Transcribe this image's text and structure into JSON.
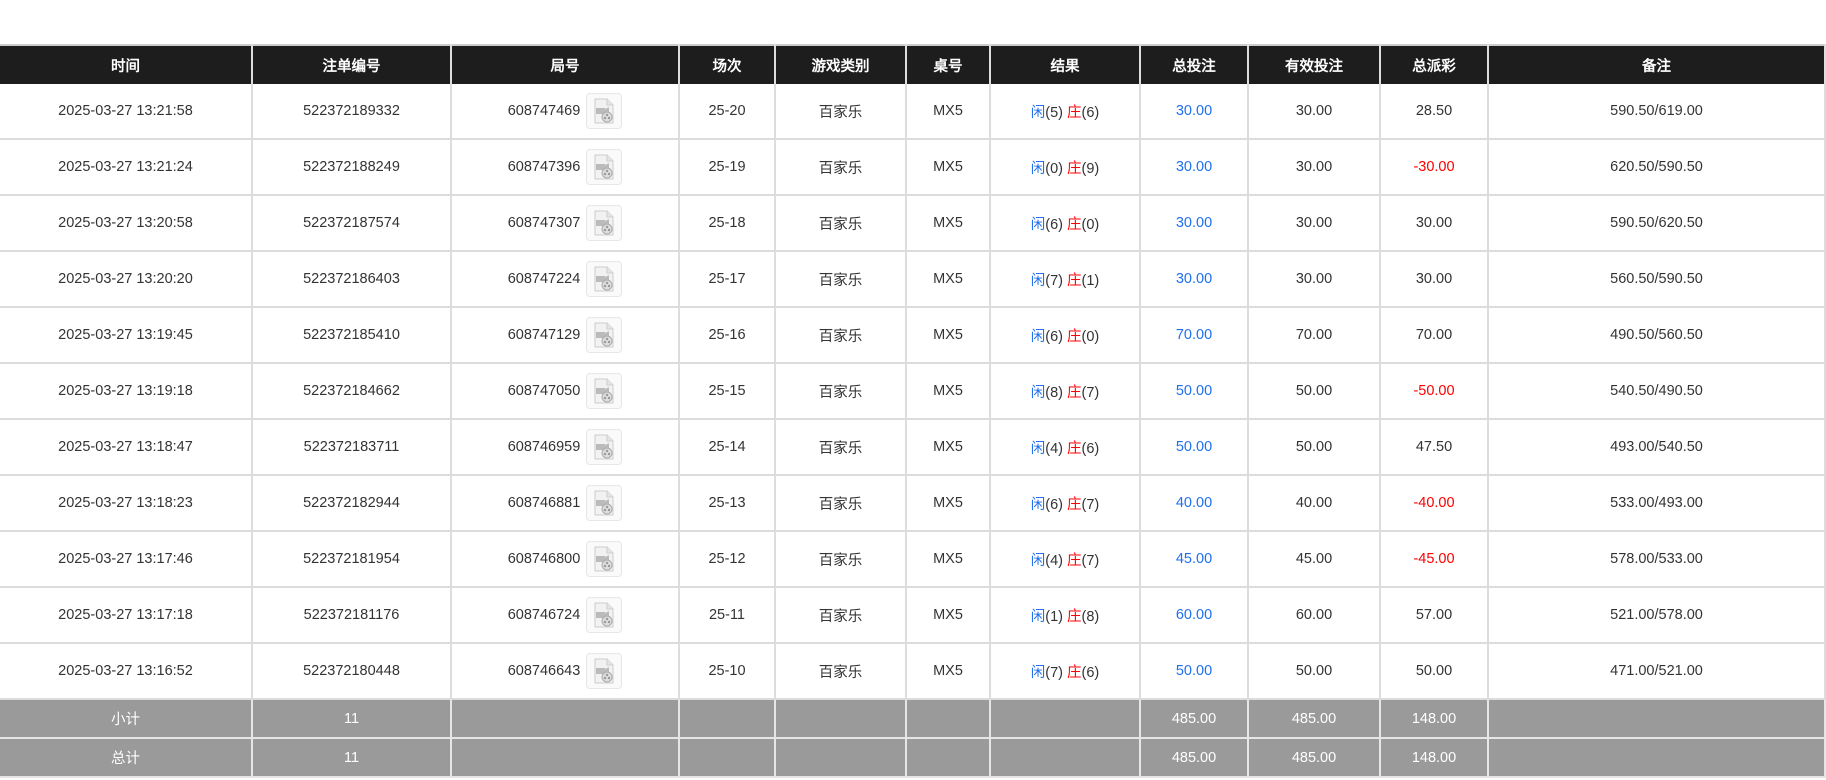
{
  "columns": [
    "时间",
    "注单编号",
    "局号",
    "场次",
    "游戏类别",
    "桌号",
    "结果",
    "总投注",
    "有效投注",
    "总派彩",
    "备注"
  ],
  "colors": {
    "player": "#1e6ff0",
    "banker": "#ff0000",
    "negative": "#ff0000",
    "header_bg": "#1d1d1d",
    "summary_bg": "#9a9a9a"
  },
  "rows": [
    {
      "time": "2025-03-27 13:21:58",
      "bet_id": "522372189332",
      "round": "608747469",
      "shoe": "25-20",
      "game": "百家乐",
      "table": "MX5",
      "player_label": "闲",
      "player": "(5)",
      "banker_label": "庄",
      "banker": "(6)",
      "total_bet": "30.00",
      "valid_bet": "30.00",
      "payout": "28.50",
      "note": "590.50/619.00"
    },
    {
      "time": "2025-03-27 13:21:24",
      "bet_id": "522372188249",
      "round": "608747396",
      "shoe": "25-19",
      "game": "百家乐",
      "table": "MX5",
      "player_label": "闲",
      "player": "(0)",
      "banker_label": "庄",
      "banker": "(9)",
      "total_bet": "30.00",
      "valid_bet": "30.00",
      "payout": "-30.00",
      "note": "620.50/590.50"
    },
    {
      "time": "2025-03-27 13:20:58",
      "bet_id": "522372187574",
      "round": "608747307",
      "shoe": "25-18",
      "game": "百家乐",
      "table": "MX5",
      "player_label": "闲",
      "player": "(6)",
      "banker_label": "庄",
      "banker": "(0)",
      "total_bet": "30.00",
      "valid_bet": "30.00",
      "payout": "30.00",
      "note": "590.50/620.50"
    },
    {
      "time": "2025-03-27 13:20:20",
      "bet_id": "522372186403",
      "round": "608747224",
      "shoe": "25-17",
      "game": "百家乐",
      "table": "MX5",
      "player_label": "闲",
      "player": "(7)",
      "banker_label": "庄",
      "banker": "(1)",
      "total_bet": "30.00",
      "valid_bet": "30.00",
      "payout": "30.00",
      "note": "560.50/590.50"
    },
    {
      "time": "2025-03-27 13:19:45",
      "bet_id": "522372185410",
      "round": "608747129",
      "shoe": "25-16",
      "game": "百家乐",
      "table": "MX5",
      "player_label": "闲",
      "player": "(6)",
      "banker_label": "庄",
      "banker": "(0)",
      "total_bet": "70.00",
      "valid_bet": "70.00",
      "payout": "70.00",
      "note": "490.50/560.50"
    },
    {
      "time": "2025-03-27 13:19:18",
      "bet_id": "522372184662",
      "round": "608747050",
      "shoe": "25-15",
      "game": "百家乐",
      "table": "MX5",
      "player_label": "闲",
      "player": "(8)",
      "banker_label": "庄",
      "banker": "(7)",
      "total_bet": "50.00",
      "valid_bet": "50.00",
      "payout": "-50.00",
      "note": "540.50/490.50"
    },
    {
      "time": "2025-03-27 13:18:47",
      "bet_id": "522372183711",
      "round": "608746959",
      "shoe": "25-14",
      "game": "百家乐",
      "table": "MX5",
      "player_label": "闲",
      "player": "(4)",
      "banker_label": "庄",
      "banker": "(6)",
      "total_bet": "50.00",
      "valid_bet": "50.00",
      "payout": "47.50",
      "note": "493.00/540.50"
    },
    {
      "time": "2025-03-27 13:18:23",
      "bet_id": "522372182944",
      "round": "608746881",
      "shoe": "25-13",
      "game": "百家乐",
      "table": "MX5",
      "player_label": "闲",
      "player": "(6)",
      "banker_label": "庄",
      "banker": "(7)",
      "total_bet": "40.00",
      "valid_bet": "40.00",
      "payout": "-40.00",
      "note": "533.00/493.00"
    },
    {
      "time": "2025-03-27 13:17:46",
      "bet_id": "522372181954",
      "round": "608746800",
      "shoe": "25-12",
      "game": "百家乐",
      "table": "MX5",
      "player_label": "闲",
      "player": "(4)",
      "banker_label": "庄",
      "banker": "(7)",
      "total_bet": "45.00",
      "valid_bet": "45.00",
      "payout": "-45.00",
      "note": "578.00/533.00"
    },
    {
      "time": "2025-03-27 13:17:18",
      "bet_id": "522372181176",
      "round": "608746724",
      "shoe": "25-11",
      "game": "百家乐",
      "table": "MX5",
      "player_label": "闲",
      "player": "(1)",
      "banker_label": "庄",
      "banker": "(8)",
      "total_bet": "60.00",
      "valid_bet": "60.00",
      "payout": "57.00",
      "note": "521.00/578.00"
    },
    {
      "time": "2025-03-27 13:16:52",
      "bet_id": "522372180448",
      "round": "608746643",
      "shoe": "25-10",
      "game": "百家乐",
      "table": "MX5",
      "player_label": "闲",
      "player": "(7)",
      "banker_label": "庄",
      "banker": "(6)",
      "total_bet": "50.00",
      "valid_bet": "50.00",
      "payout": "50.00",
      "note": "471.00/521.00"
    }
  ],
  "subtotal": {
    "label": "小计",
    "count": "11",
    "total_bet": "485.00",
    "valid_bet": "485.00",
    "payout": "148.00"
  },
  "total": {
    "label": "总计",
    "count": "11",
    "total_bet": "485.00",
    "valid_bet": "485.00",
    "payout": "148.00"
  }
}
